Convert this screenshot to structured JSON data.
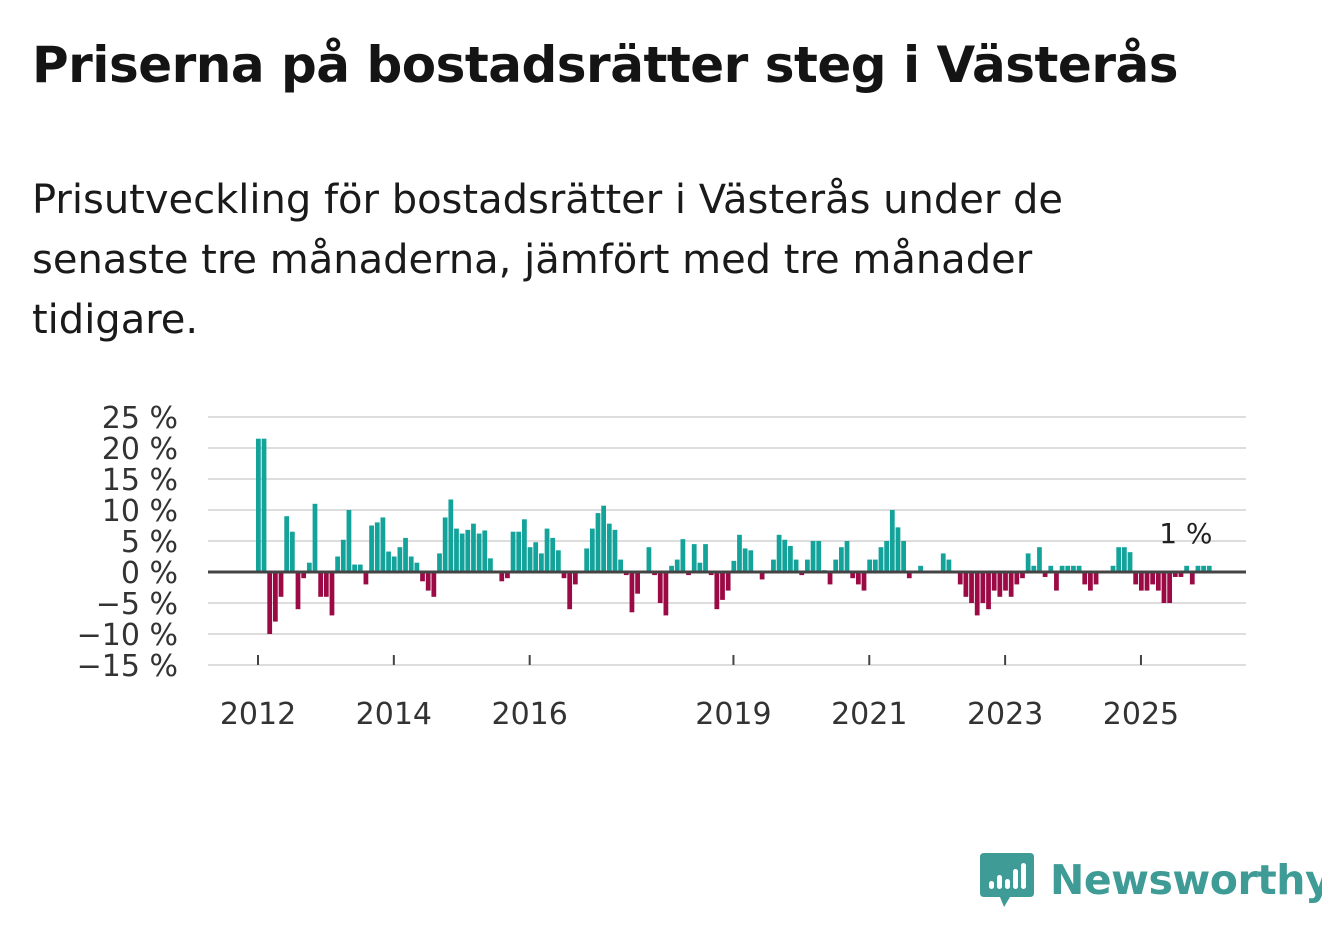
{
  "header": {
    "title": "Priserna på bostadsrätter steg i Västerås",
    "subtitle": "Prisutveckling för bostadsrätter i Västerås under de senaste tre månaderna, jämfört med tre månader tidigare."
  },
  "colors": {
    "positive": "#13a39a",
    "negative": "#9b0a45",
    "grid": "#dddddd",
    "zero": "#444444",
    "brand": "#3f9b95"
  },
  "branding": {
    "name": "Newsworthy"
  },
  "chart_data": {
    "type": "bar",
    "title": "Priserna på bostadsrätter steg i Västerås",
    "xlabel": "",
    "ylabel": "",
    "ylim": [
      -15,
      25
    ],
    "yticks": [
      25,
      20,
      15,
      10,
      5,
      0,
      -5,
      -10,
      -15
    ],
    "ytick_labels": [
      "25 %",
      "20 %",
      "15 %",
      "10 %",
      "5 %",
      "0 %",
      "−5 %",
      "−10 %",
      "−15 %"
    ],
    "xticks": [
      2012,
      2014,
      2016,
      2019,
      2021,
      2023,
      2025
    ],
    "xtick_labels": [
      "2012",
      "2014",
      "2016",
      "2019",
      "2021",
      "2023",
      "2025"
    ],
    "start": "2012-01",
    "frequency": "monthly",
    "last_value_label": "1 %",
    "values": [
      21.5,
      21.5,
      -10,
      -8,
      -4,
      9,
      6.5,
      -6,
      -1,
      1.5,
      11,
      -4,
      -4,
      -7,
      2.5,
      5.2,
      10,
      1.2,
      1.2,
      -2,
      7.5,
      8,
      8.8,
      3.3,
      2.5,
      4,
      5.5,
      2.5,
      1.5,
      -1.5,
      -3,
      -4,
      3,
      8.8,
      11.7,
      7,
      6.2,
      6.8,
      7.8,
      6.2,
      6.7,
      2.2,
      0.2,
      -1.5,
      -1,
      6.5,
      6.5,
      8.5,
      4,
      4.8,
      3,
      7,
      5.5,
      3.5,
      -1,
      -6,
      -2,
      0.2,
      3.8,
      7,
      9.5,
      10.7,
      7.8,
      6.8,
      2,
      -0.5,
      -6.5,
      -3.5,
      0.2,
      4,
      -0.5,
      -5,
      -7,
      1,
      2,
      5.3,
      -0.5,
      4.5,
      1.5,
      4.5,
      -0.5,
      -6,
      -4.5,
      -3,
      1.8,
      6,
      3.8,
      3.5,
      0.2,
      -1.2,
      0.2,
      2,
      6,
      5.2,
      4.2,
      2,
      -0.5,
      2,
      5,
      5,
      0.3,
      -2,
      2,
      4,
      5,
      -1,
      -2,
      -3,
      2,
      2,
      4,
      5,
      10,
      7.2,
      5,
      -1,
      0.2,
      1,
      0.2,
      0.2,
      0.2,
      3,
      2,
      0.2,
      -2,
      -4,
      -5,
      -7,
      -5,
      -6,
      -3,
      -4,
      -3,
      -4,
      -2,
      -1,
      3,
      1,
      4,
      -0.8,
      1,
      -3,
      1,
      1,
      1,
      1,
      -2,
      -3,
      -2,
      -0.2,
      0.2,
      1,
      4,
      4,
      3.2,
      -2,
      -3,
      -3,
      -2,
      -3,
      -5,
      -5,
      -0.8,
      -0.8,
      1,
      -2,
      1,
      1,
      1
    ]
  }
}
